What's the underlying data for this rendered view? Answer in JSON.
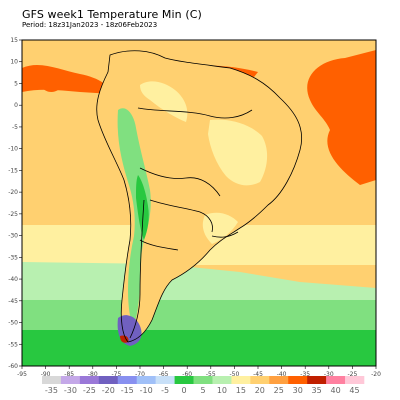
{
  "header": {
    "title": "GFS week1 Temperature Min (C)",
    "period": "Period: 18z31Jan2023 - 18z06Feb2023"
  },
  "map": {
    "lon_ticks": [
      "-95",
      "-90",
      "-85",
      "-80",
      "-75",
      "-70",
      "-65",
      "-60",
      "-55",
      "-50",
      "-45",
      "-40",
      "-35",
      "-30",
      "-25",
      "-20"
    ],
    "lat_ticks": [
      "15",
      "10",
      "5",
      "0",
      "-5",
      "-10",
      "-15",
      "-20",
      "-25",
      "-30",
      "-35",
      "-40",
      "-45",
      "-50",
      "-55",
      "-60"
    ],
    "lon_range": [
      -95,
      -20
    ],
    "lat_range": [
      -60,
      15
    ]
  },
  "colorbar": {
    "labels": [
      "-35",
      "-30",
      "-25",
      "-20",
      "-15",
      "-10",
      "-5",
      "0",
      "5",
      "10",
      "15",
      "20",
      "25",
      "30",
      "35",
      "40",
      "45"
    ],
    "colors": [
      "#d8d8d8",
      "#c4a8e8",
      "#9a78d8",
      "#7060c0",
      "#8890f0",
      "#a0c0f8",
      "#c8e0f8",
      "#28c840",
      "#80e080",
      "#b8f0b0",
      "#fff0a0",
      "#ffd070",
      "#ffa040",
      "#ff6000",
      "#c02000",
      "#ff80a0",
      "#ffc8d8"
    ]
  }
}
